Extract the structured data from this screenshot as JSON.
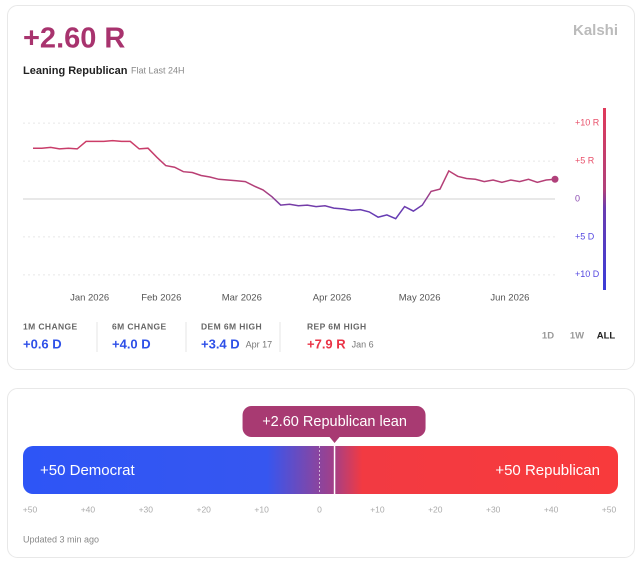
{
  "header": {
    "value": "+2.60 R",
    "subtitle": "Leaning Republican",
    "note": "Flat Last 24H",
    "brand": "Kalshi"
  },
  "chart_data": {
    "type": "line",
    "values": [
      6.7,
      6.7,
      6.8,
      6.6,
      6.7,
      6.6,
      7.6,
      7.6,
      7.6,
      7.7,
      7.6,
      7.6,
      6.6,
      6.7,
      5.5,
      4.4,
      4.2,
      3.6,
      3.5,
      3.1,
      2.9,
      2.6,
      2.5,
      2.4,
      2.3,
      1.7,
      1.2,
      0.3,
      -0.8,
      -0.7,
      -0.9,
      -0.8,
      -1.0,
      -0.9,
      -1.2,
      -1.3,
      -1.5,
      -1.4,
      -1.7,
      -2.4,
      -2.1,
      -2.6,
      -1.0,
      -1.6,
      -0.8,
      1.0,
      1.3,
      3.7,
      3.0,
      2.7,
      2.6,
      2.3,
      2.5,
      2.2,
      2.5,
      2.3,
      2.6,
      2.2,
      2.5,
      2.6
    ],
    "xlim": [
      0,
      59
    ],
    "xticks": [
      {
        "value": 6.4,
        "label": "Jan 2026"
      },
      {
        "value": 14.5,
        "label": "Feb 2026"
      },
      {
        "value": 23.6,
        "label": "Mar 2026"
      },
      {
        "value": 33.8,
        "label": "Apr 2026"
      },
      {
        "value": 43.7,
        "label": "May 2026"
      },
      {
        "value": 53.9,
        "label": "Jun 2026"
      }
    ],
    "ylim": [
      -12,
      12
    ],
    "yticks": [
      {
        "value": 10,
        "label": "+10 R"
      },
      {
        "value": 5,
        "label": "+5 R"
      },
      0,
      {
        "value": -5,
        "label": "+5 D"
      },
      {
        "value": -10,
        "label": "+10 D"
      }
    ],
    "grid": true
  },
  "stats": [
    {
      "label": "1M CHANGE",
      "value": "+0.6 D"
    },
    {
      "label": "6M CHANGE",
      "value": "+4.0 D"
    },
    {
      "label": "DEM 6M HIGH",
      "value": "+3.4 D",
      "date": "Apr 17"
    },
    {
      "label": "REP 6M HIGH",
      "value": "+7.9 R",
      "date": "Jan 6"
    }
  ],
  "ranges": [
    "1D",
    "1W",
    "ALL"
  ],
  "scale": {
    "left": "+50 Democrat",
    "right": "+50 Republican",
    "marker": {
      "value": 2.6,
      "label": "+2.60 Republican lean"
    },
    "lim": [
      -50,
      50
    ],
    "ticks": [
      {
        "value": -50,
        "label": "+50"
      },
      {
        "value": -40,
        "label": "+40"
      },
      {
        "value": -30,
        "label": "+30"
      },
      {
        "value": -20,
        "label": "+20"
      },
      {
        "value": -10,
        "label": "+10"
      },
      0,
      {
        "value": 10,
        "label": "+10"
      },
      {
        "value": 20,
        "label": "+20"
      },
      {
        "value": 30,
        "label": "+30"
      },
      {
        "value": 40,
        "label": "+40"
      },
      {
        "value": 50,
        "label": "+50"
      }
    ]
  },
  "updated": "Updated 3 min ago"
}
